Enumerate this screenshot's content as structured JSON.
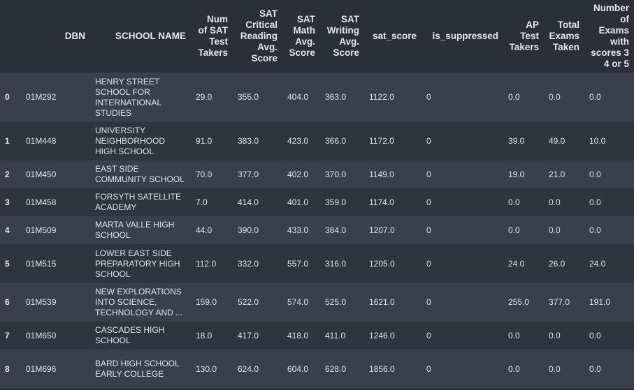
{
  "table": {
    "columns": [
      "",
      "DBN",
      "SCHOOL NAME",
      "Num of SAT Test Takers",
      "SAT Critical Reading Avg. Score",
      "SAT Math Avg. Score",
      "SAT Writing Avg. Score",
      "sat_score",
      "is_suppressed",
      "AP Test Takers",
      "Total Exams Taken",
      "Number of Exams with scores 3 4 or 5"
    ],
    "rows": [
      [
        "0",
        "01M292",
        "HENRY STREET SCHOOL FOR INTERNATIONAL STUDIES",
        "29.0",
        "355.0",
        "404.0",
        "363.0",
        "1122.0",
        "0",
        "0.0",
        "0.0",
        "0.0"
      ],
      [
        "1",
        "01M448",
        "UNIVERSITY NEIGHBORHOOD HIGH SCHOOL",
        "91.0",
        "383.0",
        "423.0",
        "366.0",
        "1172.0",
        "0",
        "39.0",
        "49.0",
        "10.0"
      ],
      [
        "2",
        "01M450",
        "EAST SIDE COMMUNITY SCHOOL",
        "70.0",
        "377.0",
        "402.0",
        "370.0",
        "1149.0",
        "0",
        "19.0",
        "21.0",
        "0.0"
      ],
      [
        "3",
        "01M458",
        "FORSYTH SATELLITE ACADEMY",
        "7.0",
        "414.0",
        "401.0",
        "359.0",
        "1174.0",
        "0",
        "0.0",
        "0.0",
        "0.0"
      ],
      [
        "4",
        "01M509",
        "MARTA VALLE HIGH SCHOOL",
        "44.0",
        "390.0",
        "433.0",
        "384.0",
        "1207.0",
        "0",
        "0.0",
        "0.0",
        "0.0"
      ],
      [
        "5",
        "01M515",
        "LOWER EAST SIDE PREPARATORY HIGH SCHOOL",
        "112.0",
        "332.0",
        "557.0",
        "316.0",
        "1205.0",
        "0",
        "24.0",
        "26.0",
        "24.0"
      ],
      [
        "6",
        "01M539",
        "NEW EXPLORATIONS INTO SCIENCE, TECHNOLOGY AND ...",
        "159.0",
        "522.0",
        "574.0",
        "525.0",
        "1621.0",
        "0",
        "255.0",
        "377.0",
        "191.0"
      ],
      [
        "7",
        "01M650",
        "CASCADES HIGH SCHOOL",
        "18.0",
        "417.0",
        "418.0",
        "411.0",
        "1246.0",
        "0",
        "0.0",
        "0.0",
        "0.0"
      ],
      [
        "8",
        "01M696",
        "BARD HIGH SCHOOL EARLY COLLEGE",
        "130.0",
        "624.0",
        "604.0",
        "628.0",
        "1856.0",
        "0",
        "0.0",
        "0.0",
        "0.0"
      ]
    ]
  }
}
